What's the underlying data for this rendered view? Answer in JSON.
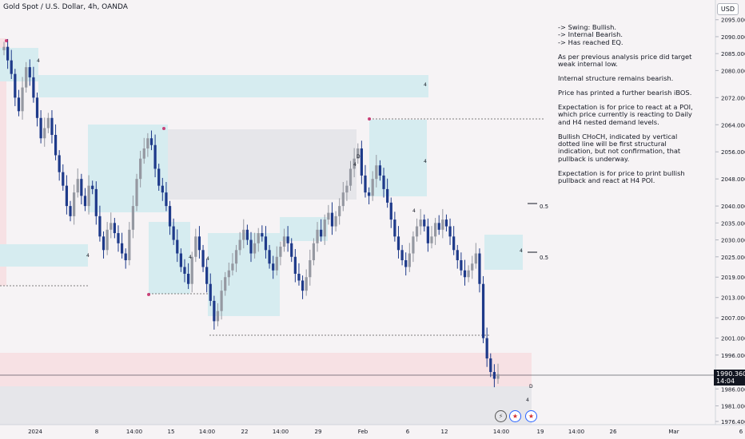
{
  "header": {
    "title": "Gold Spot / U.S. Dollar, 4h, OANDA",
    "currency": "USD"
  },
  "notes": [
    "-> Swing: Bullish.",
    "-> Internal Bearish.",
    "-> Has reached EQ.",
    "As per previous analysis price did target weak internal low.",
    "Internal structure remains bearish.",
    "Price has printed a further bearish iBOS.",
    "Expectation is for price to react at a POI, which price currently is reacting to Daily and H4 nested demand levels.",
    "Bullish CHoCH, indicated by vertical dotted line will be first structural indication, but not confirmation, that pullback is underway.",
    "Expectation is for price to print bullish pullback and react at H4 POI."
  ],
  "price_label": {
    "price": "1990.360",
    "countdown": "14:04"
  },
  "event_icons": [
    "lightning-icon",
    "us-flag-icon",
    "us-flag-icon"
  ],
  "colors": {
    "candle_up": "#9598a1",
    "candle_down": "#1e3a8a",
    "zone_supply": "#f7e1e4",
    "zone_demand": "#d6ecf0",
    "zone_neutral": "#e6e6ea",
    "background": "#f6f3f5"
  },
  "chart_data": {
    "type": "candlestick",
    "title": "Gold Spot / U.S. Dollar, 4h, OANDA",
    "ylim": [
      1976.4,
      2098
    ],
    "y_ticks": [
      "2095.000",
      "2090.000",
      "2085.000",
      "2080.000",
      "2072.000",
      "2064.000",
      "2056.000",
      "2048.000",
      "2040.000",
      "2035.000",
      "2030.000",
      "2025.000",
      "2019.000",
      "2013.000",
      "2007.000",
      "2001.000",
      "1996.000",
      "1986.000",
      "1981.000",
      "1976.400"
    ],
    "x_ticks": [
      "2024",
      "8",
      "14:00",
      "15",
      "14:00",
      "22",
      "14:00",
      "29",
      "Feb",
      "6",
      "12",
      "14:00",
      "19",
      "14:00",
      "26",
      "Mar",
      "6"
    ],
    "close_series": [
      2087,
      2083,
      2079,
      2072,
      2068,
      2075,
      2081,
      2078,
      2072,
      2066,
      2060,
      2063,
      2066,
      2061,
      2055,
      2050,
      2046,
      2040,
      2037,
      2044,
      2048,
      2043,
      2040,
      2046,
      2045,
      2037,
      2031,
      2027,
      2033,
      2035,
      2032,
      2029,
      2026,
      2024,
      2033,
      2040,
      2048,
      2054,
      2057,
      2060,
      2058,
      2051,
      2046,
      2044,
      2040,
      2034,
      2030,
      2026,
      2022,
      2020,
      2017,
      2025,
      2031,
      2027,
      2022,
      2017,
      2012,
      2006,
      2009,
      2015,
      2019,
      2021,
      2023,
      2027,
      2030,
      2033,
      2030,
      2026,
      2029,
      2032,
      2031,
      2027,
      2023,
      2021,
      2025,
      2028,
      2031,
      2029,
      2025,
      2020,
      2018,
      2015,
      2019,
      2024,
      2029,
      2033,
      2031,
      2036,
      2038,
      2034,
      2037,
      2040,
      2044,
      2046,
      2051,
      2054,
      2057,
      2049,
      2044,
      2043,
      2048,
      2052,
      2049,
      2045,
      2041,
      2036,
      2031,
      2027,
      2024,
      2022,
      2026,
      2031,
      2034,
      2036,
      2034,
      2029,
      2031,
      2035,
      2033,
      2036,
      2034,
      2031,
      2027,
      2024,
      2021,
      2019,
      2021,
      2023,
      2026,
      2017,
      2001,
      1995,
      1991,
      1989,
      1990.36
    ],
    "levels": [
      {
        "label": "0.5",
        "value": 2040
      },
      {
        "label": "0.5",
        "value": 2025
      }
    ],
    "annotations": [
      "4",
      "4",
      "4",
      "4",
      "4",
      "D",
      "4",
      "4",
      "4",
      "4",
      "D",
      "4"
    ]
  }
}
